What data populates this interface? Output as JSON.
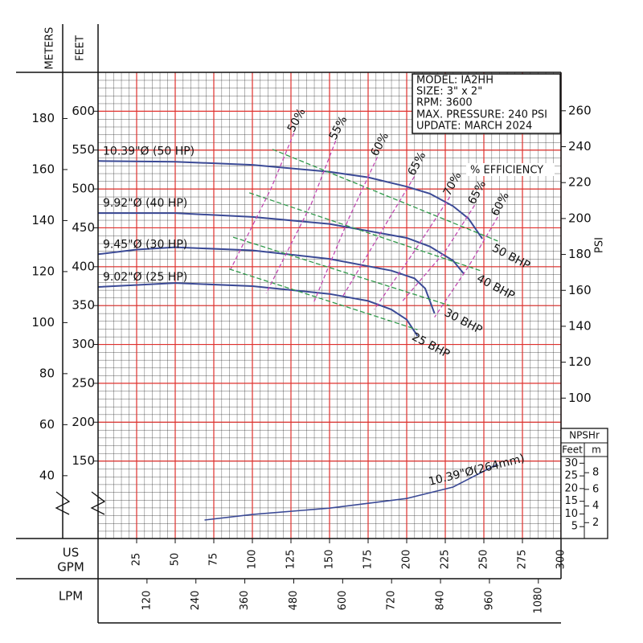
{
  "chart_data": {
    "type": "line",
    "axis_headers": {
      "meters": "METERS",
      "feet": "FEET",
      "psi": "PSI",
      "gpm": [
        "US",
        "GPM"
      ],
      "lpm": "LPM"
    },
    "info": [
      "MODEL: IA2HH",
      "SIZE: 3\" x 2\"",
      "RPM: 3600",
      "MAX. PRESSURE: 240 PSI",
      "UPDATE: MARCH 2024"
    ],
    "efficiency_title": "% EFFICIENCY",
    "xlim": [
      0,
      300
    ],
    "xticks": [
      25,
      50,
      75,
      100,
      125,
      150,
      175,
      200,
      225,
      250,
      275,
      300
    ],
    "x2lim": [
      0,
      1135.6
    ],
    "x2ticks": [
      120,
      240,
      360,
      480,
      600,
      720,
      840,
      960,
      1080
    ],
    "ylim": [
      100,
      650
    ],
    "yticks": [
      150,
      200,
      250,
      300,
      350,
      400,
      450,
      500,
      550,
      600
    ],
    "y2lim": [
      43.3,
      281.4
    ],
    "y2ticks": [
      100,
      120,
      140,
      160,
      180,
      200,
      220,
      240,
      260
    ],
    "y3lim": [
      30.5,
      198.1
    ],
    "y3ticks": [
      40,
      60,
      80,
      100,
      120,
      140,
      160,
      180
    ],
    "grid": true,
    "series": [
      {
        "name": "10.39\"Ø (50 HP)",
        "color": "#3b4a96",
        "x": [
          0,
          50,
          100,
          150,
          175,
          200,
          215,
          230,
          240,
          249
        ],
        "values": [
          536,
          535,
          531,
          522,
          515,
          503,
          494,
          478,
          462,
          436
        ]
      },
      {
        "name": "9.92\"Ø (40 HP)",
        "color": "#3b4a96",
        "x": [
          0,
          50,
          100,
          150,
          200,
          215,
          230,
          237
        ],
        "values": [
          469,
          469,
          464,
          455,
          437,
          426,
          408,
          391
        ]
      },
      {
        "name": "9.45\"Ø (30 HP)",
        "color": "#3b4a96",
        "x": [
          0,
          25,
          50,
          100,
          150,
          190,
          205,
          212,
          218
        ],
        "values": [
          416,
          422,
          425,
          421,
          410,
          395,
          385,
          372,
          340
        ]
      },
      {
        "name": "9.02\"Ø (25 HP)",
        "color": "#3b4a96",
        "x": [
          0,
          50,
          100,
          150,
          175,
          190,
          200,
          207
        ],
        "values": [
          374,
          379,
          375,
          365,
          356,
          345,
          332,
          311
        ]
      }
    ],
    "bhp": [
      {
        "name": "50 BHP",
        "color": "#2f9a4a",
        "x": [
          113,
          259
        ],
        "values": [
          551,
          433
        ]
      },
      {
        "name": "40 BHP",
        "color": "#2f9a4a",
        "x": [
          98,
          249
        ],
        "values": [
          495,
          394
        ]
      },
      {
        "name": "30 BHP",
        "color": "#2f9a4a",
        "x": [
          87.5,
          228
        ],
        "values": [
          438,
          350
        ]
      },
      {
        "name": "25 BHP",
        "color": "#2f9a4a",
        "x": [
          85,
          207
        ],
        "values": [
          397,
          319
        ]
      }
    ],
    "efficiency": [
      {
        "name": "50%",
        "color": "#c24ab2",
        "x": [
          127,
          112,
          86
        ],
        "values": [
          572,
          500,
          397
        ]
      },
      {
        "name": "55%",
        "color": "#c24ab2",
        "x": [
          154,
          138,
          109
        ],
        "values": [
          562,
          480,
          366
        ]
      },
      {
        "name": "60%",
        "color": "#c24ab2",
        "x": [
          181,
          162,
          140
        ],
        "values": [
          541,
          460,
          355
        ]
      },
      {
        "name": "65%",
        "color": "#c24ab2",
        "x": [
          205,
          185,
          158
        ],
        "values": [
          516,
          450,
          360
        ]
      },
      {
        "name": "70%",
        "color": "#c24ab2",
        "x": [
          228,
          205,
          179
        ],
        "values": [
          490,
          420,
          345
        ]
      },
      {
        "name": "65%",
        "color": "#c24ab2",
        "x": [
          244,
          225,
          197
        ],
        "values": [
          479,
          420,
          355
        ]
      },
      {
        "name": "60%",
        "color": "#c24ab2",
        "x": [
          259,
          240,
          218
        ],
        "values": [
          464,
          400,
          335
        ]
      }
    ],
    "npshr": {
      "title": "NPSHr",
      "feet_label": "Feet",
      "m_label": "m",
      "ylim": [
        0,
        32
      ],
      "yticks": [
        5,
        10,
        15,
        20,
        25,
        30
      ],
      "y2lim": [
        0,
        9.75
      ],
      "y2ticks": [
        2,
        4,
        6,
        8
      ],
      "series": [
        {
          "name": "10.39\"Ø(264mm)",
          "color": "#3b4a96",
          "x": [
            69,
            100,
            150,
            200,
            230,
            259
          ],
          "values": [
            7.6,
            9.8,
            12.3,
            16.1,
            20.6,
            29.7
          ]
        }
      ]
    }
  }
}
